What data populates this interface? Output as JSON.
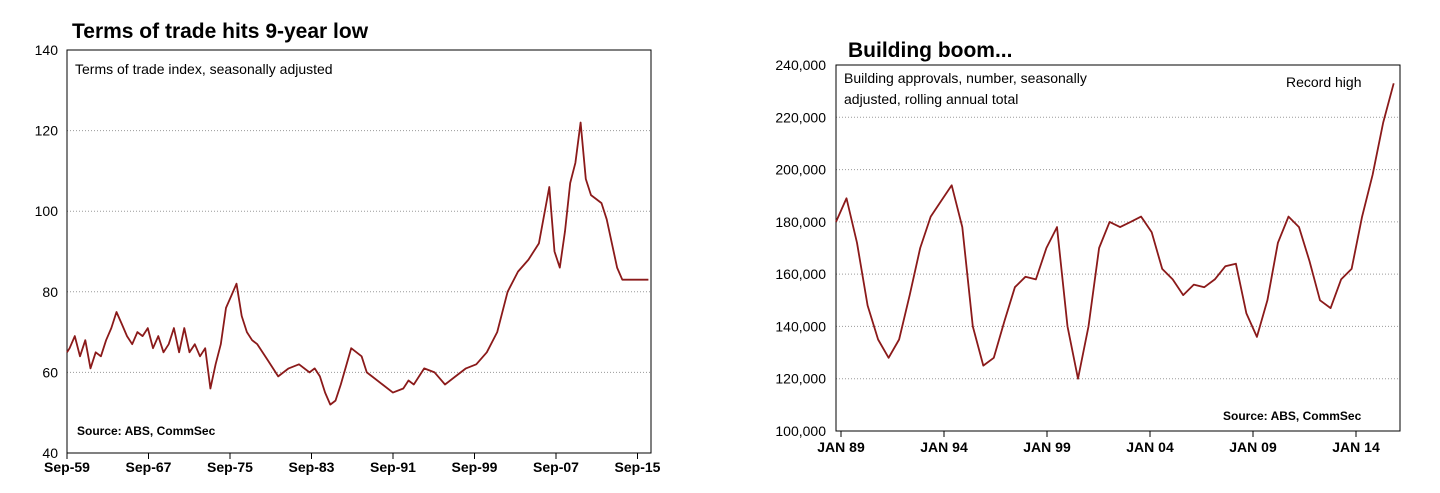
{
  "chart_data": [
    {
      "type": "line",
      "title": "Terms of trade hits 9-year low",
      "subtitle": "Terms of trade index, seasonally adjusted",
      "source": "Source: ABS, CommSec",
      "xlabel": "",
      "ylabel": "",
      "x_tick_labels": [
        "Sep-59",
        "Sep-67",
        "Sep-75",
        "Sep-83",
        "Sep-91",
        "Sep-99",
        "Sep-07",
        "Sep-15"
      ],
      "xlim": [
        1959.75,
        2015.75
      ],
      "ylim": [
        40,
        140
      ],
      "y_ticks": [
        40,
        60,
        80,
        100,
        120,
        140
      ],
      "grid": true,
      "series": [
        {
          "color": "#8b1a1a",
          "x": [
            1959.75,
            1960.0,
            1960.5,
            1961.0,
            1961.5,
            1962.0,
            1962.5,
            1963.0,
            1963.5,
            1964.0,
            1964.5,
            1965.0,
            1965.5,
            1966.0,
            1966.5,
            1967.0,
            1967.5,
            1968.0,
            1968.5,
            1969.0,
            1969.5,
            1970.0,
            1970.5,
            1971.0,
            1971.5,
            1972.0,
            1972.5,
            1973.0,
            1973.5,
            1974.0,
            1974.5,
            1975.0,
            1975.5,
            1976.0,
            1976.5,
            1977.0,
            1977.5,
            1978.0,
            1979.0,
            1980.0,
            1981.0,
            1982.0,
            1983.0,
            1983.5,
            1984.0,
            1984.5,
            1985.0,
            1985.5,
            1986.0,
            1987.0,
            1988.0,
            1988.5,
            1989.0,
            1990.0,
            1991.0,
            1992.0,
            1992.5,
            1993.0,
            1994.0,
            1995.0,
            1996.0,
            1997.0,
            1998.0,
            1999.0,
            2000.0,
            2001.0,
            2002.0,
            2003.0,
            2004.0,
            2005.0,
            2006.0,
            2006.5,
            2007.0,
            2007.5,
            2008.0,
            2008.5,
            2009.0,
            2009.5,
            2010.0,
            2010.5,
            2011.0,
            2011.5,
            2012.0,
            2012.5,
            2013.0,
            2013.5,
            2014.0,
            2014.5,
            2015.0,
            2015.5
          ],
          "values": [
            65,
            66,
            69,
            64,
            68,
            61,
            65,
            64,
            68,
            71,
            75,
            72,
            69,
            67,
            70,
            69,
            71,
            66,
            69,
            65,
            67,
            71,
            65,
            71,
            65,
            67,
            64,
            66,
            56,
            62,
            67,
            76,
            79,
            82,
            74,
            70,
            68,
            67,
            63,
            59,
            61,
            62,
            60,
            61,
            59,
            55,
            52,
            53,
            57,
            66,
            64,
            60,
            59,
            57,
            55,
            56,
            58,
            57,
            61,
            60,
            57,
            59,
            61,
            62,
            65,
            70,
            80,
            85,
            88,
            92,
            106,
            90,
            86,
            95,
            107,
            112,
            122,
            108,
            104,
            103,
            102,
            98,
            92,
            86,
            83,
            83,
            83,
            83,
            83,
            83
          ]
        }
      ]
    },
    {
      "type": "line",
      "title": "Building boom...",
      "subtitle": "Building approvals, number, seasonally adjusted, rolling annual total",
      "subtitle_lines": [
        "Building approvals, number, seasonally",
        "adjusted, rolling annual total"
      ],
      "annotation": "Record high",
      "source": "Source: ABS, CommSec",
      "xlabel": "",
      "ylabel": "",
      "x_tick_labels": [
        "JAN 89",
        "JAN 94",
        "JAN 99",
        "JAN 04",
        "JAN 09",
        "JAN 14"
      ],
      "xlim": [
        1989.0,
        2015.8
      ],
      "ylim": [
        100000,
        240000
      ],
      "y_ticks": [
        100000,
        120000,
        140000,
        160000,
        180000,
        200000,
        220000,
        240000
      ],
      "y_tick_labels": [
        "100,000",
        "120,000",
        "140,000",
        "160,000",
        "180,000",
        "200,000",
        "220,000",
        "240,000"
      ],
      "grid": true,
      "series": [
        {
          "color": "#8b1a1a",
          "x": [
            1989.0,
            1989.5,
            1990.0,
            1990.5,
            1991.0,
            1991.5,
            1992.0,
            1992.5,
            1993.0,
            1993.5,
            1994.0,
            1994.5,
            1995.0,
            1995.5,
            1996.0,
            1996.5,
            1997.0,
            1997.5,
            1998.0,
            1998.5,
            1999.0,
            1999.5,
            2000.0,
            2000.5,
            2001.0,
            2001.5,
            2002.0,
            2002.5,
            2003.0,
            2003.5,
            2004.0,
            2004.5,
            2005.0,
            2005.5,
            2006.0,
            2006.5,
            2007.0,
            2007.5,
            2008.0,
            2008.5,
            2009.0,
            2009.5,
            2010.0,
            2010.5,
            2011.0,
            2011.5,
            2012.0,
            2012.5,
            2013.0,
            2013.5,
            2014.0,
            2014.5,
            2015.0,
            2015.5
          ],
          "values": [
            180000,
            189000,
            172000,
            148000,
            135000,
            128000,
            135000,
            152000,
            170000,
            182000,
            188000,
            194000,
            178000,
            140000,
            125000,
            128000,
            142000,
            155000,
            159000,
            158000,
            170000,
            178000,
            140000,
            120000,
            140000,
            170000,
            180000,
            178000,
            180000,
            182000,
            176000,
            162000,
            158000,
            152000,
            156000,
            155000,
            158000,
            163000,
            164000,
            145000,
            136000,
            150000,
            172000,
            182000,
            178000,
            165000,
            150000,
            147000,
            158000,
            162000,
            182000,
            198000,
            218000,
            233000
          ]
        }
      ]
    }
  ]
}
